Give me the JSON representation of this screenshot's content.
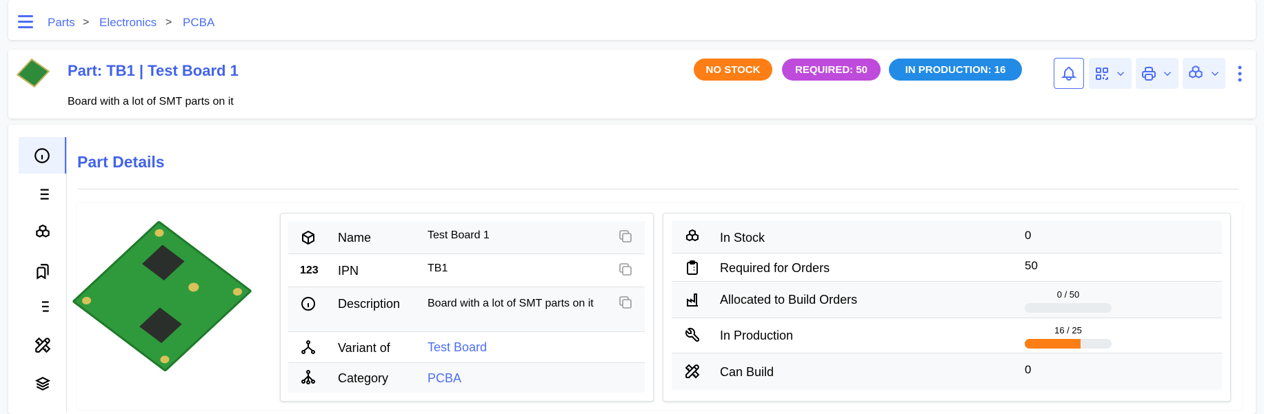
{
  "breadcrumb": {
    "items": [
      "Parts",
      "Electronics",
      "PCBA"
    ],
    "separator": ">"
  },
  "part": {
    "title": "Part: TB1 | Test Board 1",
    "description": "Board with a lot of SMT parts on it"
  },
  "badges": [
    {
      "label": "NO STOCK",
      "color": "#fd7e14"
    },
    {
      "label": "REQUIRED: 50",
      "color": "#be4bdb"
    },
    {
      "label": "IN PRODUCTION: 16",
      "color": "#228be6"
    }
  ],
  "actions": [
    "bell-icon",
    "qrcode-icon",
    "printer-icon",
    "stock-icon",
    "dots-vertical-icon"
  ],
  "section": {
    "title": "Part Details"
  },
  "details": [
    {
      "label": "Name",
      "value": "Test Board 1",
      "copy": true
    },
    {
      "label": "IPN",
      "value": "TB1",
      "copy": true
    },
    {
      "label": "Description",
      "value": "Board with a lot of SMT parts on it",
      "copy": true
    },
    {
      "label": "Variant of",
      "value": "Test Board",
      "link": true
    },
    {
      "label": "Category",
      "value": "PCBA",
      "link": true
    }
  ],
  "stock": [
    {
      "label": "In Stock",
      "value": "0"
    },
    {
      "label": "Required for Orders",
      "value": "50"
    },
    {
      "label": "Allocated to Build Orders",
      "progress_text": "0 / 50",
      "progress": 0
    },
    {
      "label": "In Production",
      "progress_text": "16 / 25",
      "progress": 0.64
    },
    {
      "label": "Can Build",
      "value": "0"
    }
  ],
  "colors": {
    "accent": "#4c6ef5",
    "progress": "#fd7e14"
  }
}
